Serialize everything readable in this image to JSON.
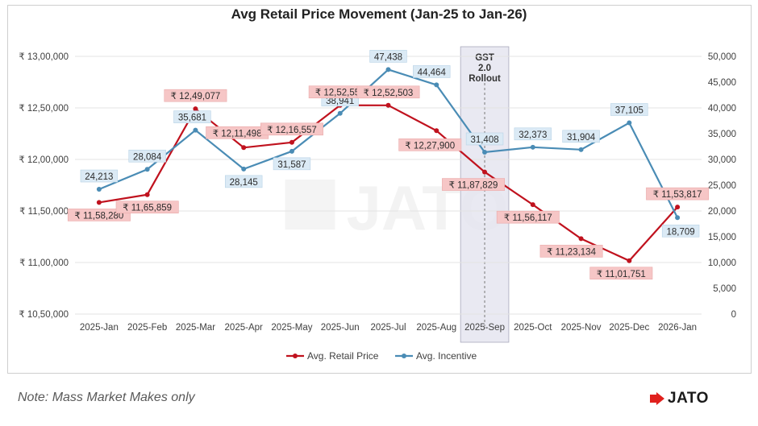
{
  "chart_data": {
    "type": "line",
    "title": "Avg Retail Price Movement (Jan-25 to Jan-26)",
    "categories": [
      "2025-Jan",
      "2025-Feb",
      "2025-Mar",
      "2025-Apr",
      "2025-May",
      "2025-Jun",
      "2025-Jul",
      "2025-Aug",
      "2025-Sep",
      "2025-Oct",
      "2025-Nov",
      "2025-Dec",
      "2026-Jan"
    ],
    "series": [
      {
        "name": "Avg. Retail Price",
        "axis": "left",
        "color": "#c0121e",
        "values": [
          1158280,
          1165859,
          1249077,
          1211498,
          1216557,
          1252555,
          1252503,
          1227900,
          1187829,
          1156117,
          1123134,
          1101751,
          1153817
        ],
        "labels": [
          "₹ 11,58,280",
          "₹ 11,65,859",
          "₹ 12,49,077",
          "₹ 12,11,498",
          "₹ 12,16,557",
          "₹ 12,52,555",
          "₹ 12,52,503",
          "₹ 12,27,900",
          "₹ 11,87,829",
          "₹ 11,56,117",
          "₹ 11,23,134",
          "₹ 11,01,751",
          "₹ 11,53,817"
        ]
      },
      {
        "name": "Avg. Incentive",
        "axis": "right",
        "color": "#4a8cb5",
        "values": [
          24213,
          28084,
          35681,
          28145,
          31587,
          38941,
          47438,
          44464,
          31408,
          32373,
          31904,
          37105,
          18709
        ],
        "labels": [
          "24,213",
          "28,084",
          "35,681",
          "28,145",
          "31,587",
          "38,941",
          "47,438",
          "44,464",
          "31,408",
          "32,373",
          "31,904",
          "37,105",
          "18,709"
        ]
      }
    ],
    "y_left": {
      "range": [
        1050000,
        1300000
      ],
      "ticks": [
        1050000,
        1100000,
        1150000,
        1200000,
        1250000,
        1300000
      ],
      "tick_labels": [
        "₹ 10,50,000",
        "₹ 11,00,000",
        "₹ 11,50,000",
        "₹ 12,00,000",
        "₹ 12,50,000",
        "₹ 13,00,000"
      ]
    },
    "y_right": {
      "range": [
        0,
        50000
      ],
      "ticks": [
        0,
        5000,
        10000,
        15000,
        20000,
        25000,
        30000,
        35000,
        40000,
        45000,
        50000
      ],
      "tick_labels": [
        "0",
        "5,000",
        "10,000",
        "15,000",
        "20,000",
        "25,000",
        "30,000",
        "35,000",
        "40,000",
        "45,000",
        "50,000"
      ]
    },
    "grid": true,
    "legend": "bottom-center",
    "annotation": {
      "category": "2025-Sep",
      "lines": [
        "GST",
        "2.0",
        "Rollout"
      ]
    }
  },
  "note": "Note: Mass Market Makes only",
  "brand": "JATO",
  "watermark": "JATO"
}
